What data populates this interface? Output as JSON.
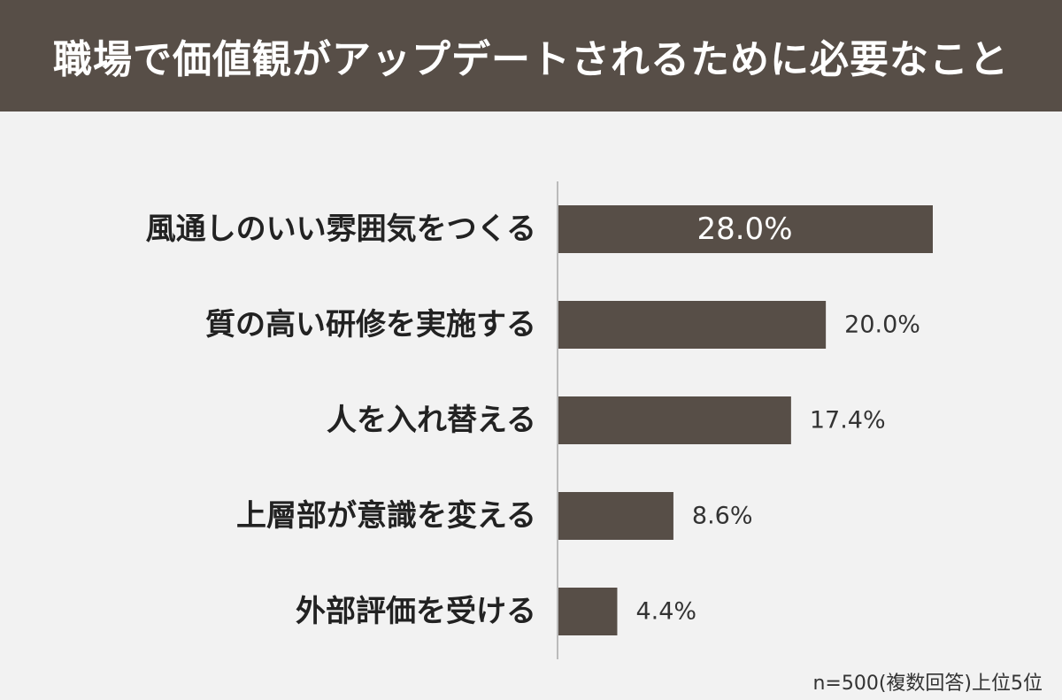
{
  "header": {
    "title": "職場で価値観がアップデートされるために必要なこと"
  },
  "note": "n=500(複数回答)上位5位",
  "colors": {
    "bar": "#574e47",
    "background": "#f2f2f2",
    "title_bg": "#574e47",
    "axis": "#bbbbbb"
  },
  "chart_data": {
    "type": "bar",
    "orientation": "horizontal",
    "title": "職場で価値観がアップデートされるために必要なこと",
    "categories": [
      "風通しのいい雰囲気をつくる",
      "質の高い研修を実施する",
      "人を入れ替える",
      "上層部が意識を変える",
      "外部評価を受ける"
    ],
    "values": [
      28.0,
      20.0,
      17.4,
      8.6,
      4.4
    ],
    "value_labels": [
      "28.0%",
      "20.0%",
      "17.4%",
      "8.6%",
      "4.4%"
    ],
    "xlim": [
      0,
      28
    ],
    "grid": false,
    "legend": "none"
  }
}
